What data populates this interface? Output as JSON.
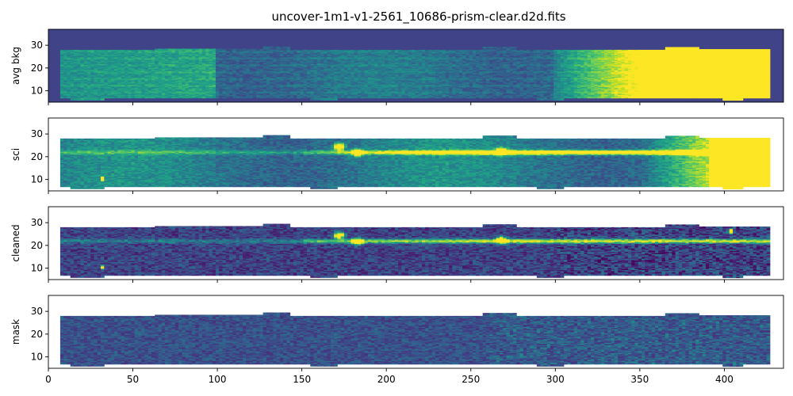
{
  "chart_data": {
    "type": "heatmap",
    "title": "uncover-1m1-v1-2561_10686-prism-clear.d2d.fits",
    "colormap": "viridis",
    "xlim": [
      0,
      435
    ],
    "shared_x_ticks": [
      0,
      50,
      100,
      150,
      200,
      250,
      300,
      350,
      400
    ],
    "panels": [
      {
        "ylabel": "avg bkg",
        "ylim": [
          5,
          37
        ],
        "yticks": [
          10,
          20,
          30
        ],
        "background": "#404387",
        "description": "background model, bright at high x"
      },
      {
        "ylabel": "sci",
        "ylim": [
          5,
          37
        ],
        "yticks": [
          10,
          20,
          30
        ],
        "background": "#ffffff",
        "description": "science frame with trace near y=22"
      },
      {
        "ylabel": "cleaned",
        "ylim": [
          5,
          37
        ],
        "yticks": [
          10,
          20,
          30
        ],
        "background": "#ffffff",
        "description": "background-subtracted frame, trace near y=22"
      },
      {
        "ylabel": "mask",
        "ylim": [
          5,
          37
        ],
        "yticks": [
          10,
          20,
          30
        ],
        "background": "#ffffff",
        "description": "mask, mostly uniform"
      }
    ],
    "features": {
      "trace_y": 22,
      "emission_blobs": [
        {
          "x": 172,
          "y": 24.5
        },
        {
          "x": 183,
          "y": 21.8
        },
        {
          "x": 268,
          "y": 22.5
        }
      ],
      "hot_pixel": {
        "x": 404,
        "y": 26.5
      },
      "edge_spot": {
        "x": 32,
        "y": 10.5
      }
    }
  }
}
